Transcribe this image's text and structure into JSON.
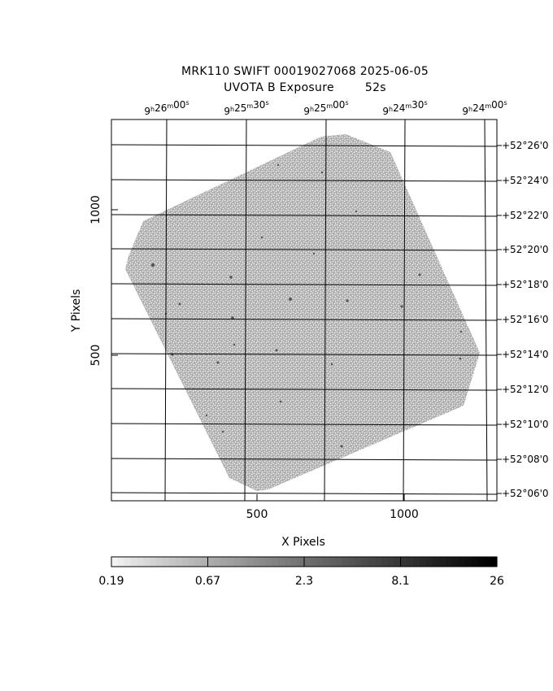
{
  "header": {
    "title_line1": "MRK110 SWIFT 00019027068 2025-06-05",
    "title_line2": "UVOTA B Exposure        52s"
  },
  "chart_data": {
    "type": "heatmap",
    "image": "UVOT sky image, rotated square exposure footprint",
    "xlabel": "X Pixels",
    "ylabel": "Y Pixels",
    "xlim": [
      0,
      1300
    ],
    "ylim": [
      0,
      1300
    ],
    "x_ticks": [
      500,
      1000
    ],
    "y_ticks": [
      500,
      1000
    ],
    "ra_ticks": [
      {
        "h": "9",
        "m": "26",
        "s": "00"
      },
      {
        "h": "9",
        "m": "25",
        "s": "30"
      },
      {
        "h": "9",
        "m": "25",
        "s": "00"
      },
      {
        "h": "9",
        "m": "24",
        "s": "30"
      },
      {
        "h": "9",
        "m": "24",
        "s": "00"
      }
    ],
    "dec_ticks": [
      "+52°26'0",
      "+52°24'0",
      "+52°22'0",
      "+52°20'0",
      "+52°18'0",
      "+52°16'0",
      "+52°14'0",
      "+52°12'0",
      "+52°10'0",
      "+52°08'0",
      "+52°06'0"
    ],
    "colorbar": {
      "scale": "log",
      "labels": [
        "0.19",
        "0.67",
        "2.3",
        "8.1",
        "26"
      ],
      "colors": [
        "#f2f2f2",
        "#aaaaaa",
        "#777777",
        "#444444",
        "#000000"
      ]
    },
    "grid": true,
    "footprint_color": "#b4b4b4",
    "background_color": "#ffffff"
  }
}
